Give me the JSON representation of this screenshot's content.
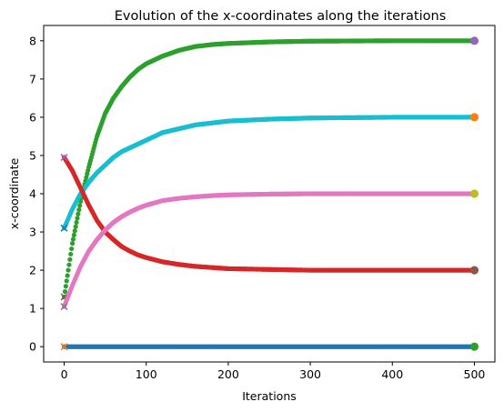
{
  "chart_data": {
    "type": "scatter",
    "title": "Evolution of the x-coordinates along the iterations",
    "xlabel": "Iterations",
    "ylabel": "x-coordinate",
    "xlim": [
      -25,
      525
    ],
    "ylim": [
      -0.4,
      8.4
    ],
    "xticks": [
      0,
      100,
      200,
      300,
      400,
      500
    ],
    "yticks": [
      0,
      1,
      2,
      3,
      4,
      5,
      6,
      7,
      8
    ],
    "grid": false,
    "iterations": 500,
    "series": [
      {
        "color": "#1f77b4",
        "path": [
          [
            0,
            0
          ],
          [
            500,
            0
          ]
        ],
        "start": {
          "x": 0,
          "y": 0,
          "marker": "x",
          "color": "#ff7f0e"
        },
        "end": {
          "x": 500,
          "y": 0,
          "marker": "o",
          "color": "#2ca02c"
        }
      },
      {
        "color": "#2ca02c",
        "path": [
          [
            0,
            1.3
          ],
          [
            10,
            2.7
          ],
          [
            20,
            3.8
          ],
          [
            30,
            4.7
          ],
          [
            40,
            5.5
          ],
          [
            50,
            6.1
          ],
          [
            60,
            6.5
          ],
          [
            70,
            6.8
          ],
          [
            80,
            7.05
          ],
          [
            90,
            7.25
          ],
          [
            100,
            7.4
          ],
          [
            120,
            7.6
          ],
          [
            140,
            7.75
          ],
          [
            160,
            7.85
          ],
          [
            180,
            7.9
          ],
          [
            200,
            7.93
          ],
          [
            250,
            7.97
          ],
          [
            300,
            7.99
          ],
          [
            400,
            8.0
          ],
          [
            500,
            8.0
          ]
        ],
        "start": {
          "x": 0,
          "y": 1.3,
          "marker": "x",
          "color": "#8c564b"
        },
        "end": {
          "x": 500,
          "y": 8.0,
          "marker": "o",
          "color": "#9467bd"
        }
      },
      {
        "color": "#17becf",
        "path": [
          [
            0,
            3.1
          ],
          [
            10,
            3.6
          ],
          [
            20,
            4.0
          ],
          [
            30,
            4.3
          ],
          [
            40,
            4.55
          ],
          [
            50,
            4.75
          ],
          [
            60,
            4.95
          ],
          [
            70,
            5.1
          ],
          [
            80,
            5.2
          ],
          [
            90,
            5.3
          ],
          [
            100,
            5.4
          ],
          [
            120,
            5.6
          ],
          [
            140,
            5.7
          ],
          [
            160,
            5.8
          ],
          [
            180,
            5.85
          ],
          [
            200,
            5.9
          ],
          [
            250,
            5.95
          ],
          [
            300,
            5.98
          ],
          [
            400,
            6.0
          ],
          [
            500,
            6.0
          ]
        ],
        "start": {
          "x": 0,
          "y": 3.1,
          "marker": "x",
          "color": "#1f77b4"
        },
        "end": {
          "x": 500,
          "y": 6.0,
          "marker": "o",
          "color": "#ff7f0e"
        }
      },
      {
        "color": "#d62728",
        "path": [
          [
            0,
            4.95
          ],
          [
            10,
            4.6
          ],
          [
            20,
            4.15
          ],
          [
            30,
            3.7
          ],
          [
            40,
            3.3
          ],
          [
            50,
            3.0
          ],
          [
            60,
            2.8
          ],
          [
            70,
            2.62
          ],
          [
            80,
            2.5
          ],
          [
            90,
            2.4
          ],
          [
            100,
            2.33
          ],
          [
            120,
            2.22
          ],
          [
            140,
            2.15
          ],
          [
            160,
            2.1
          ],
          [
            180,
            2.07
          ],
          [
            200,
            2.04
          ],
          [
            250,
            2.02
          ],
          [
            300,
            2.0
          ],
          [
            400,
            2.0
          ],
          [
            500,
            2.0
          ]
        ],
        "start": {
          "x": 0,
          "y": 4.95,
          "marker": "x",
          "color": "#9467bd"
        },
        "end": {
          "x": 500,
          "y": 2.0,
          "marker": "o",
          "color": "#8c564b"
        }
      },
      {
        "color": "#e377c2",
        "path": [
          [
            0,
            1.05
          ],
          [
            10,
            1.6
          ],
          [
            20,
            2.1
          ],
          [
            30,
            2.5
          ],
          [
            40,
            2.8
          ],
          [
            50,
            3.05
          ],
          [
            60,
            3.25
          ],
          [
            70,
            3.4
          ],
          [
            80,
            3.52
          ],
          [
            90,
            3.62
          ],
          [
            100,
            3.7
          ],
          [
            120,
            3.82
          ],
          [
            140,
            3.88
          ],
          [
            160,
            3.92
          ],
          [
            180,
            3.95
          ],
          [
            200,
            3.97
          ],
          [
            250,
            3.99
          ],
          [
            300,
            4.0
          ],
          [
            400,
            4.0
          ],
          [
            500,
            4.0
          ]
        ],
        "start": {
          "x": 0,
          "y": 1.05,
          "marker": "x",
          "color": "#7f7f7f"
        },
        "end": {
          "x": 500,
          "y": 4.0,
          "marker": "o",
          "color": "#bcbd22"
        }
      }
    ]
  }
}
